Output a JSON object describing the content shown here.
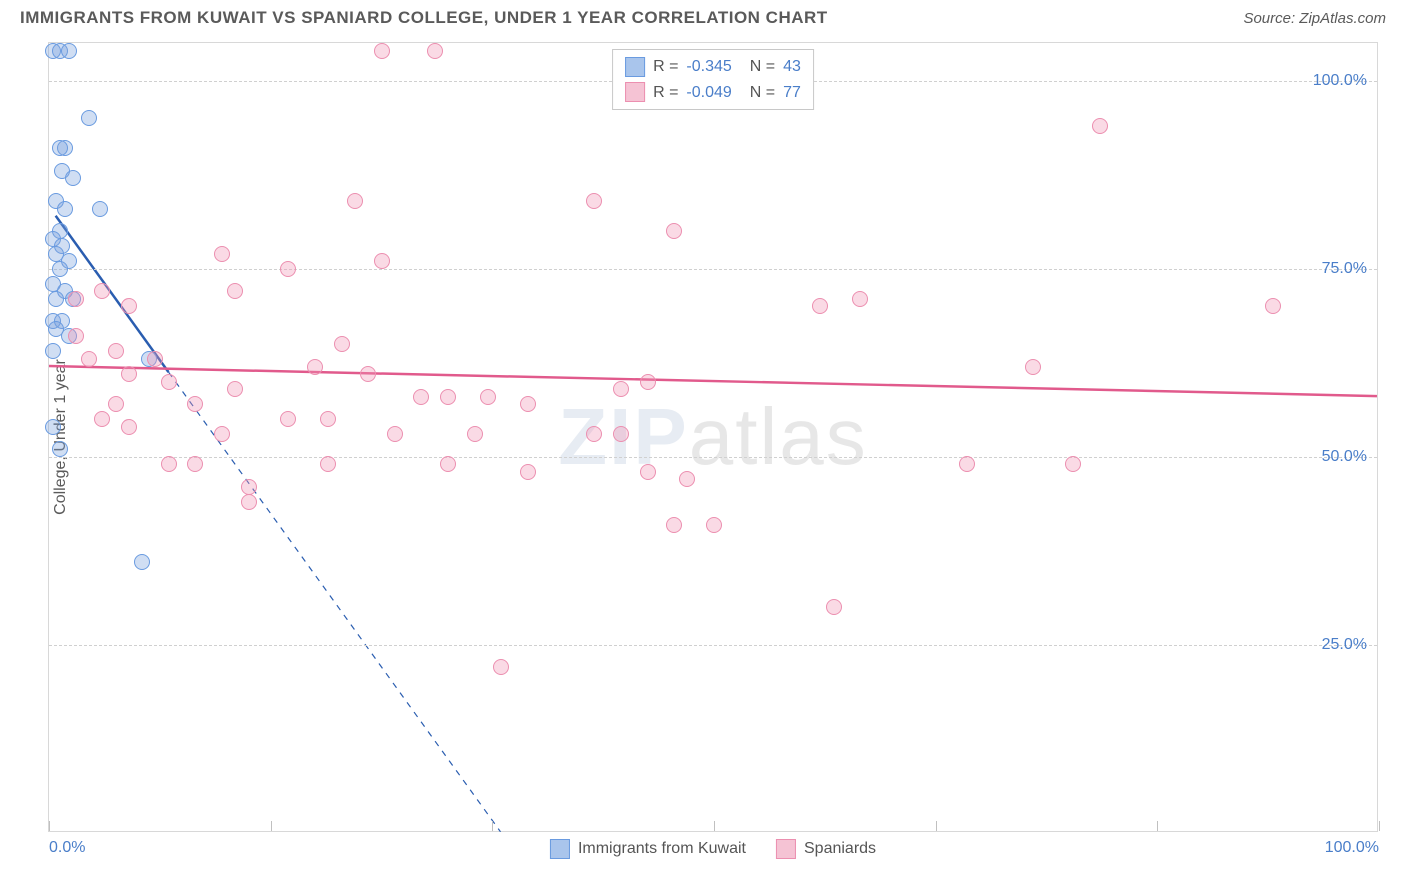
{
  "header": {
    "title": "IMMIGRANTS FROM KUWAIT VS SPANIARD COLLEGE, UNDER 1 YEAR CORRELATION CHART",
    "source": "Source: ZipAtlas.com"
  },
  "chart": {
    "type": "scatter",
    "watermark": "ZIPatlas",
    "background_color": "#ffffff",
    "grid_color": "#d0d0d0",
    "border_color": "#d8d8d8",
    "y_axis_label": "College, Under 1 year",
    "label_color": "#5a5a5a",
    "label_fontsize": 16,
    "tick_color": "#4a7ec9",
    "tick_fontsize": 16,
    "xlim": [
      0,
      100
    ],
    "ylim": [
      0,
      105
    ],
    "x_ticks": [
      0,
      16.67,
      33.33,
      50,
      66.67,
      83.33,
      100
    ],
    "x_tick_labels": {
      "0": "0.0%",
      "100": "100.0%"
    },
    "y_ticks": [
      25,
      50,
      75,
      100
    ],
    "y_tick_labels": [
      "25.0%",
      "50.0%",
      "75.0%",
      "100.0%"
    ],
    "marker_radius": 8,
    "marker_stroke_width": 1.2,
    "series": [
      {
        "name": "Immigrants from Kuwait",
        "fill": "rgba(120,160,220,0.35)",
        "stroke": "#6a9be0",
        "swatch_fill": "#a9c5ec",
        "swatch_stroke": "#6a9be0",
        "r_value": "-0.345",
        "n_value": "43",
        "regression": {
          "x1": 0.5,
          "y1": 82,
          "x2": 34,
          "y2": 0,
          "solid_until_x": 9,
          "color": "#2a5db0",
          "width": 2.5
        },
        "points": [
          [
            0.3,
            104
          ],
          [
            0.8,
            104
          ],
          [
            1.5,
            104
          ],
          [
            3.0,
            95
          ],
          [
            1.2,
            91
          ],
          [
            0.8,
            91
          ],
          [
            1.0,
            88
          ],
          [
            1.8,
            87
          ],
          [
            0.5,
            84
          ],
          [
            1.2,
            83
          ],
          [
            3.8,
            83
          ],
          [
            0.8,
            80
          ],
          [
            0.3,
            79
          ],
          [
            1.0,
            78
          ],
          [
            0.5,
            77
          ],
          [
            1.5,
            76
          ],
          [
            0.8,
            75
          ],
          [
            0.3,
            73
          ],
          [
            1.2,
            72
          ],
          [
            0.5,
            71
          ],
          [
            1.8,
            71
          ],
          [
            0.3,
            68
          ],
          [
            1.0,
            68
          ],
          [
            0.5,
            67
          ],
          [
            1.5,
            66
          ],
          [
            0.3,
            64
          ],
          [
            7.5,
            63
          ],
          [
            0.3,
            54
          ],
          [
            0.8,
            51
          ],
          [
            7.0,
            36
          ]
        ]
      },
      {
        "name": "Spaniards",
        "fill": "rgba(240,150,180,0.35)",
        "stroke": "#ec8fb0",
        "swatch_fill": "#f5c3d4",
        "swatch_stroke": "#ec8fb0",
        "r_value": "-0.049",
        "n_value": "77",
        "regression": {
          "x1": 0,
          "y1": 62,
          "x2": 100,
          "y2": 58,
          "solid_until_x": 100,
          "color": "#e15a8c",
          "width": 2.5
        },
        "points": [
          [
            25,
            104
          ],
          [
            29,
            104
          ],
          [
            23,
            84
          ],
          [
            41,
            84
          ],
          [
            13,
            77
          ],
          [
            18,
            75
          ],
          [
            25,
            76
          ],
          [
            47,
            80
          ],
          [
            14,
            72
          ],
          [
            4,
            72
          ],
          [
            2,
            71
          ],
          [
            6,
            70
          ],
          [
            92,
            70
          ],
          [
            61,
            71
          ],
          [
            79,
            94
          ],
          [
            58,
            70
          ],
          [
            22,
            65
          ],
          [
            2,
            66
          ],
          [
            5,
            64
          ],
          [
            8,
            63
          ],
          [
            3,
            63
          ],
          [
            6,
            61
          ],
          [
            9,
            60
          ],
          [
            14,
            59
          ],
          [
            20,
            62
          ],
          [
            24,
            61
          ],
          [
            28,
            58
          ],
          [
            30,
            58
          ],
          [
            33,
            58
          ],
          [
            36,
            57
          ],
          [
            43,
            59
          ],
          [
            45,
            60
          ],
          [
            11,
            57
          ],
          [
            5,
            57
          ],
          [
            18,
            55
          ],
          [
            21,
            55
          ],
          [
            6,
            54
          ],
          [
            4,
            55
          ],
          [
            13,
            53
          ],
          [
            26,
            53
          ],
          [
            32,
            53
          ],
          [
            41,
            53
          ],
          [
            43,
            53
          ],
          [
            30,
            49
          ],
          [
            21,
            49
          ],
          [
            48,
            47
          ],
          [
            47,
            41
          ],
          [
            50,
            41
          ],
          [
            15,
            44
          ],
          [
            15,
            46
          ],
          [
            11,
            49
          ],
          [
            9,
            49
          ],
          [
            59,
            30
          ],
          [
            34,
            22
          ],
          [
            45,
            48
          ],
          [
            36,
            48
          ],
          [
            69,
            49
          ],
          [
            77,
            49
          ],
          [
            74,
            62
          ]
        ]
      }
    ],
    "bottom_legend": [
      {
        "label": "Immigrants from Kuwait",
        "fill": "#a9c5ec",
        "stroke": "#6a9be0"
      },
      {
        "label": "Spaniards",
        "fill": "#f5c3d4",
        "stroke": "#ec8fb0"
      }
    ]
  }
}
